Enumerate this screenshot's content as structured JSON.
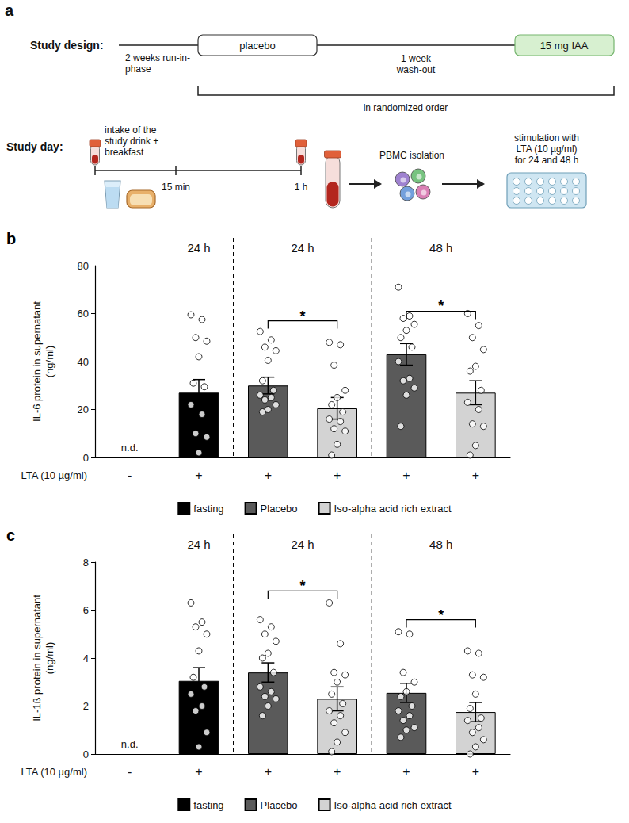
{
  "diagram": {
    "panel_label": "a",
    "study_design": {
      "label": "Study design:",
      "run_in": [
        "2 weeks run-in-",
        "phase"
      ],
      "phases": [
        "placebo",
        "15 mg IAA"
      ],
      "wash_out": [
        "1 week",
        "wash-out"
      ],
      "order": "in randomized order"
    },
    "study_day": {
      "label": "Study day:",
      "intake": [
        "intake of the",
        "study drink +",
        "breakfast"
      ],
      "times": [
        "15 min",
        "1 h"
      ],
      "isolation": "PBMC isolation",
      "stimulation": [
        "stimulation with",
        "LTA (10 µg/ml)",
        "for 24 and 48 h"
      ]
    }
  },
  "chart_data": [
    {
      "type": "bar",
      "panel_label": "b",
      "y_label": "IL-6 protein in supernatant (ng/ml)",
      "x_label": "LTA (10 µg/ml)",
      "categories": [
        "-",
        "+",
        "+",
        "+",
        "+",
        "+"
      ],
      "ylim": [
        0,
        80
      ],
      "yticks": [
        0,
        20,
        40,
        60,
        80
      ],
      "grid": false,
      "legend": "bottom",
      "groups": [
        {
          "label": "24 h",
          "categories": [
            1
          ]
        },
        {
          "label": "24 h",
          "categories": [
            2,
            3
          ]
        },
        {
          "label": "48 h",
          "categories": [
            4,
            5
          ]
        }
      ],
      "annotations": [
        {
          "text": "n.d.",
          "category": 0
        }
      ],
      "significance": [
        {
          "from": 2,
          "to": 3,
          "y": 57,
          "label": "*"
        },
        {
          "from": 4,
          "to": 5,
          "y": 61,
          "label": "*"
        }
      ],
      "series": [
        {
          "name": "fasting",
          "color": "#000000",
          "values": [
            null,
            27,
            null,
            null,
            null,
            null
          ],
          "errors": [
            null,
            5.5,
            null,
            null,
            null,
            null
          ],
          "points": [
            null,
            [
              59.5,
              57.5,
              50,
              48.5,
              42,
              31,
              29.5,
              22,
              18,
              10,
              8.5,
              2
            ],
            null,
            null,
            null,
            null
          ]
        },
        {
          "name": "Placebo",
          "color": "#5a5a5a",
          "values": [
            null,
            null,
            30,
            null,
            43,
            null
          ],
          "errors": [
            null,
            null,
            3.5,
            null,
            4.5,
            null
          ],
          "points": [
            null,
            null,
            [
              52.5,
              49,
              46,
              44.5,
              40.5,
              32,
              28,
              26,
              25,
              24,
              22,
              20,
              19
            ],
            null,
            [
              71,
              59,
              58,
              55.5,
              53,
              50,
              46,
              40,
              33,
              32,
              29,
              26,
              13
            ],
            null
          ]
        },
        {
          "name": "Iso-alpha acid rich extract",
          "color": "#d3d3d3",
          "values": [
            null,
            null,
            null,
            20.5,
            null,
            27
          ],
          "errors": [
            null,
            null,
            null,
            4.5,
            null,
            5
          ],
          "points": [
            null,
            null,
            null,
            [
              48,
              47,
              38.5,
              28,
              25,
              22,
              19,
              16,
              15,
              12,
              11,
              5.5,
              1
            ],
            null,
            [
              60,
              55,
              50,
              45,
              38,
              36,
              28,
              23,
              20,
              14,
              13,
              5,
              1
            ]
          ]
        }
      ]
    },
    {
      "type": "bar",
      "panel_label": "c",
      "y_label": "IL-1ß protein in supernatant (ng/ml)",
      "x_label": "LTA (10 µg/ml)",
      "categories": [
        "-",
        "+",
        "+",
        "+",
        "+",
        "+"
      ],
      "ylim": [
        0,
        8
      ],
      "yticks": [
        0,
        2,
        4,
        6,
        8
      ],
      "grid": false,
      "legend": "bottom",
      "groups": [
        {
          "label": "24 h",
          "categories": [
            1
          ]
        },
        {
          "label": "24 h",
          "categories": [
            2,
            3
          ]
        },
        {
          "label": "48 h",
          "categories": [
            4,
            5
          ]
        }
      ],
      "annotations": [
        {
          "text": "n.d.",
          "category": 0
        }
      ],
      "significance": [
        {
          "from": 2,
          "to": 3,
          "y": 6.8,
          "label": "*"
        },
        {
          "from": 4,
          "to": 5,
          "y": 5.6,
          "label": "*"
        }
      ],
      "series": [
        {
          "name": "fasting",
          "color": "#000000",
          "values": [
            null,
            3.05,
            null,
            null,
            null,
            null
          ],
          "errors": [
            null,
            0.55,
            null,
            null,
            null,
            null
          ],
          "points": [
            null,
            [
              6.3,
              5.5,
              5.3,
              5.0,
              4.3,
              3.2,
              2.8,
              2.5,
              2.0,
              1.8,
              0.9,
              0.3
            ],
            null,
            null,
            null,
            null
          ]
        },
        {
          "name": "Placebo",
          "color": "#5a5a5a",
          "values": [
            null,
            null,
            3.4,
            null,
            2.55,
            null
          ],
          "errors": [
            null,
            null,
            0.4,
            null,
            0.4,
            null
          ],
          "points": [
            null,
            null,
            [
              5.6,
              5.3,
              5.0,
              4.7,
              4.2,
              4.0,
              3.4,
              2.8,
              2.6,
              2.4,
              2.3,
              2.0,
              1.6
            ],
            null,
            [
              5.1,
              5.0,
              3.4,
              3.0,
              2.6,
              2.4,
              2.0,
              1.8,
              1.6,
              1.4,
              1.1,
              1.0,
              0.7
            ],
            null
          ]
        },
        {
          "name": "Iso-alpha acid rich extract",
          "color": "#d3d3d3",
          "values": [
            null,
            null,
            null,
            2.3,
            null,
            1.75
          ],
          "errors": [
            null,
            null,
            null,
            0.5,
            null,
            0.4
          ],
          "points": [
            null,
            null,
            null,
            [
              6.3,
              4.6,
              3.4,
              3.3,
              3.0,
              2.5,
              2.1,
              1.8,
              1.6,
              1.3,
              0.9,
              0.5,
              0.1
            ],
            null,
            [
              4.3,
              4.2,
              3.3,
              3.2,
              2.5,
              1.9,
              1.5,
              1.4,
              1.1,
              0.9,
              0.6,
              0.3,
              0.0
            ]
          ]
        }
      ]
    }
  ]
}
